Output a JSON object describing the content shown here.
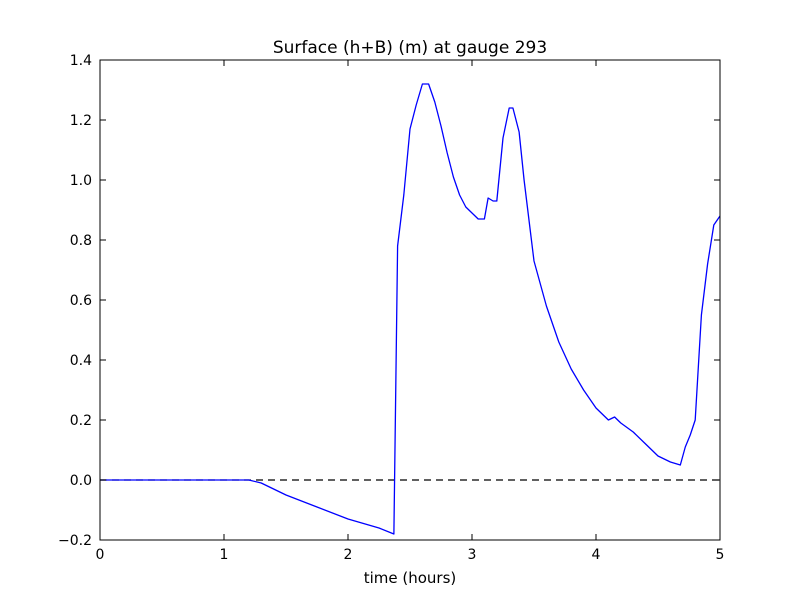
{
  "chart_data": {
    "type": "line",
    "title": "Surface (h+B) (m) at gauge 293",
    "xlabel": "time (hours)",
    "ylabel": "",
    "xlim": [
      0,
      5
    ],
    "ylim": [
      -0.2,
      1.4
    ],
    "xticks": [
      "0",
      "1",
      "2",
      "3",
      "4",
      "5"
    ],
    "yticks": [
      "−0.2",
      "0.0",
      "0.2",
      "0.4",
      "0.6",
      "0.8",
      "1.0",
      "1.2",
      "1.4"
    ],
    "grid": false,
    "line_color": "#0000ff",
    "reference_line": {
      "y": 0.0,
      "style": "dashed",
      "color": "#000000"
    },
    "series": [
      {
        "x": [
          0,
          0.5,
          1.0,
          1.2,
          1.3,
          1.5,
          1.75,
          2.0,
          2.25,
          2.37,
          2.4,
          2.45,
          2.5,
          2.55,
          2.6,
          2.65,
          2.7,
          2.75,
          2.8,
          2.85,
          2.9,
          2.95,
          3.0,
          3.05,
          3.1,
          3.13,
          3.17,
          3.2,
          3.25,
          3.3,
          3.33,
          3.38,
          3.42,
          3.5,
          3.6,
          3.7,
          3.8,
          3.9,
          4.0,
          4.1,
          4.15,
          4.2,
          4.3,
          4.4,
          4.5,
          4.6,
          4.68,
          4.72,
          4.76,
          4.8,
          4.85,
          4.9,
          4.95,
          5.0
        ],
        "y": [
          0.0,
          0.0,
          0.0,
          0.0,
          -0.01,
          -0.05,
          -0.09,
          -0.13,
          -0.16,
          -0.18,
          0.78,
          0.95,
          1.17,
          1.25,
          1.32,
          1.32,
          1.26,
          1.18,
          1.09,
          1.01,
          0.95,
          0.91,
          0.89,
          0.87,
          0.87,
          0.94,
          0.93,
          0.93,
          1.14,
          1.24,
          1.24,
          1.16,
          1.0,
          0.73,
          0.58,
          0.46,
          0.37,
          0.3,
          0.24,
          0.2,
          0.21,
          0.19,
          0.16,
          0.12,
          0.08,
          0.06,
          0.05,
          0.11,
          0.15,
          0.2,
          0.55,
          0.72,
          0.85,
          0.88
        ]
      }
    ]
  }
}
